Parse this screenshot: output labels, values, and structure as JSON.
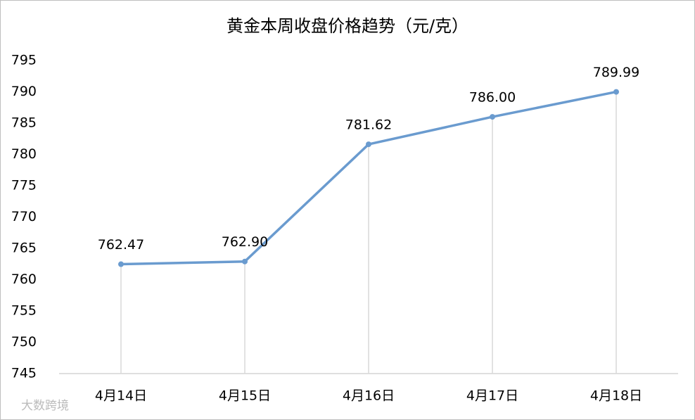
{
  "chart_data": {
    "type": "line",
    "title": "黄金本周收盘价格趋势（元/克）",
    "categories": [
      "4月14日",
      "4月15日",
      "4月16日",
      "4月17日",
      "4月18日"
    ],
    "values": [
      762.47,
      762.9,
      781.62,
      786.0,
      789.99
    ],
    "value_labels": [
      "762.47",
      "762.90",
      "781.62",
      "786.00",
      "789.99"
    ],
    "color": "#6a9bcf",
    "ylim": [
      745,
      795
    ],
    "yticks": [
      745,
      750,
      755,
      760,
      765,
      770,
      775,
      780,
      785,
      790,
      795
    ],
    "drop_lines": true,
    "watermark": "大数跨境"
  }
}
